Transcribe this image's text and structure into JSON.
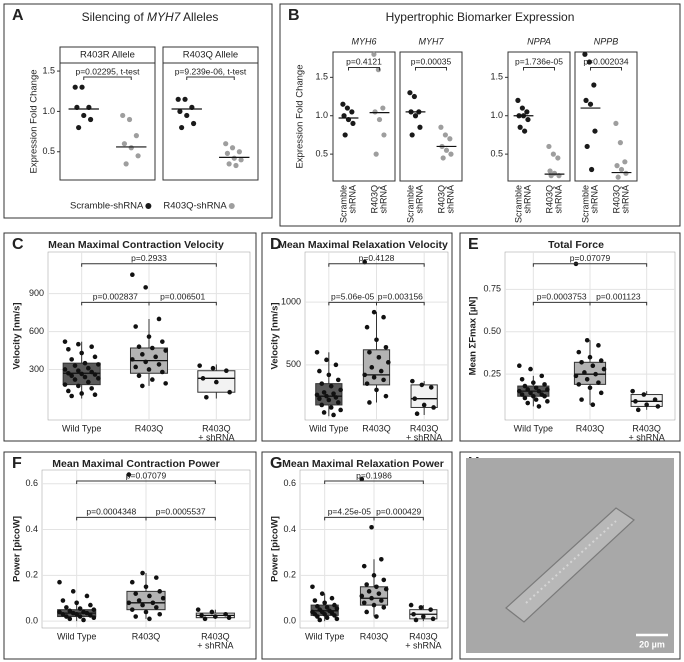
{
  "chart_data": [
    {
      "type": "strip",
      "panel": "A",
      "title": [
        "Silencing of ",
        "MYH7",
        " Alleles"
      ],
      "ylabel": "Expression Fold Change",
      "ylim": [
        0.15,
        1.6
      ],
      "yticks": [
        {
          "value": 0.5,
          "label": "0.5"
        },
        {
          "value": 1,
          "label": "1.0"
        },
        {
          "value": 1.5,
          "label": "1.5"
        }
      ],
      "legend": [
        {
          "name": "Scramble-shRNA",
          "color": "#1a1a1a"
        },
        {
          "name": "R403Q-shRNA",
          "color": "#9e9e9e"
        }
      ],
      "facets": [
        {
          "name": "R403R Allele",
          "p_label": "p=0.02295, t-test",
          "groups": [
            {
              "values": [
                1.3,
                1.3,
                1.05,
                1.05,
                0.95,
                0.9,
                0.8
              ],
              "median": 1.03
            },
            {
              "values": [
                0.95,
                0.9,
                0.7,
                0.6,
                0.55,
                0.45,
                0.35
              ],
              "median": 0.56
            }
          ]
        },
        {
          "name": "R403Q Allele",
          "p_label": "p=9.239e-06, t-test",
          "groups": [
            {
              "values": [
                1.15,
                1.15,
                1.05,
                1.0,
                0.95,
                0.85,
                0.8
              ],
              "median": 1.03
            },
            {
              "values": [
                0.6,
                0.55,
                0.5,
                0.48,
                0.42,
                0.4,
                0.35,
                0.33
              ],
              "median": 0.43
            }
          ]
        }
      ]
    },
    {
      "type": "strip",
      "panel": "B",
      "title": [
        "Hypertrophic Biomarker Expression"
      ],
      "ylabel": "Expression Fold Change",
      "ylim": [
        0.15,
        1.83
      ],
      "yticks": [
        {
          "value": 0.5,
          "label": "0.5"
        },
        {
          "value": 1,
          "label": "1.0"
        },
        {
          "value": 1.5,
          "label": "1.5"
        }
      ],
      "categories": [
        [
          "Scramble",
          "shRNA"
        ],
        [
          "R403Q",
          "shRNA"
        ]
      ],
      "legend": [
        {
          "color": "#1a1a1a"
        },
        {
          "color": "#9e9e9e"
        }
      ],
      "facets": [
        {
          "name": "MYH6",
          "p_label": "p=0.4121",
          "groups": [
            {
              "values": [
                1.15,
                1.1,
                1.05,
                1.0,
                0.95,
                0.9,
                0.75
              ],
              "median": 0.97
            },
            {
              "values": [
                1.8,
                1.6,
                1.1,
                1.05,
                0.95,
                0.75,
                0.5
              ],
              "median": 1.04
            }
          ]
        },
        {
          "name": "MYH7",
          "p_label": "p=0.00035",
          "groups": [
            {
              "values": [
                1.3,
                1.25,
                1.05,
                1.05,
                1.0,
                0.85,
                0.75
              ],
              "median": 1.05
            },
            {
              "values": [
                0.85,
                0.75,
                0.7,
                0.6,
                0.55,
                0.5,
                0.45
              ],
              "median": 0.6
            }
          ]
        },
        {
          "name": "NPPA",
          "p_label": "p=1.736e-05",
          "groups": [
            {
              "values": [
                1.2,
                1.1,
                1.05,
                1.0,
                1.0,
                0.95,
                0.85,
                0.8
              ],
              "median": 1.0
            },
            {
              "values": [
                0.6,
                0.5,
                0.45,
                0.28,
                0.25,
                0.22,
                0.22
              ],
              "median": 0.24
            }
          ]
        },
        {
          "name": "NPPB",
          "p_label": "p=0.002034",
          "groups": [
            {
              "values": [
                1.8,
                1.7,
                1.4,
                1.2,
                1.15,
                0.8,
                0.6,
                0.3
              ],
              "median": 1.1
            },
            {
              "values": [
                0.9,
                0.65,
                0.4,
                0.35,
                0.3,
                0.25,
                0.2
              ],
              "median": 0.26
            }
          ]
        }
      ]
    },
    {
      "type": "box",
      "panel": "C",
      "title": "Mean Maximal Contraction Velocity",
      "ylabel": "Velocity [nm/s]",
      "ylim": [
        -100,
        1230
      ],
      "yticks": [
        300,
        600,
        900
      ],
      "grid": true,
      "categories": [
        [
          "Wild Type"
        ],
        [
          "R403Q"
        ],
        [
          "R403Q",
          "+ shRNA"
        ]
      ],
      "groups": [
        {
          "fill": "#595959",
          "min": 70,
          "q1": 180,
          "median": 270,
          "q3": 350,
          "max": 520,
          "points": [
            520,
            500,
            480,
            460,
            430,
            400,
            380,
            350,
            340,
            330,
            310,
            300,
            290,
            280,
            270,
            265,
            260,
            250,
            240,
            230,
            220,
            200,
            180,
            170,
            150,
            130,
            110,
            100,
            90
          ]
        },
        {
          "fill": "#b3b3b3",
          "min": 170,
          "q1": 270,
          "median": 370,
          "q3": 470,
          "max": 700,
          "points": [
            1050,
            950,
            700,
            640,
            560,
            520,
            480,
            470,
            450,
            420,
            400,
            380,
            360,
            340,
            320,
            300,
            280,
            250,
            220,
            190,
            170
          ]
        },
        {
          "fill": "#f2f2f2",
          "min": 70,
          "q1": 120,
          "median": 230,
          "q3": 290,
          "max": 340,
          "points": [
            330,
            310,
            290,
            230,
            200,
            120,
            80
          ]
        }
      ],
      "comparisons": [
        {
          "pair": [
            0,
            1
          ],
          "label": "p=0.002837"
        },
        {
          "pair": [
            1,
            2
          ],
          "label": "p=0.006501"
        },
        {
          "pair": [
            0,
            2
          ],
          "label": "p=0.2933"
        }
      ]
    },
    {
      "type": "box",
      "panel": "D",
      "title": "Mean Maximal Relaxation Velocity",
      "ylabel": "Velocity [nm/s]",
      "ylim": [
        60,
        1400
      ],
      "yticks": [
        500,
        1000
      ],
      "grid": true,
      "categories": [
        [
          "Wild Type"
        ],
        [
          "R403Q"
        ],
        [
          "R403Q",
          "+ shRNA"
        ]
      ],
      "groups": [
        {
          "fill": "#595959",
          "min": 90,
          "q1": 180,
          "median": 250,
          "q3": 350,
          "max": 600,
          "points": [
            600,
            540,
            500,
            450,
            420,
            380,
            350,
            330,
            300,
            280,
            270,
            260,
            250,
            240,
            230,
            220,
            200,
            180,
            160,
            140,
            120,
            100
          ]
        },
        {
          "fill": "#b3b3b3",
          "min": 200,
          "q1": 340,
          "median": 420,
          "q3": 620,
          "max": 920,
          "points": [
            1320,
            920,
            880,
            800,
            700,
            640,
            600,
            560,
            520,
            480,
            450,
            420,
            400,
            380,
            350,
            300,
            250,
            200
          ]
        },
        {
          "fill": "#f2f2f2",
          "min": 100,
          "q1": 160,
          "median": 230,
          "q3": 340,
          "max": 370,
          "points": [
            370,
            340,
            320,
            230,
            180,
            160,
            110
          ]
        }
      ],
      "comparisons": [
        {
          "pair": [
            0,
            1
          ],
          "label": "p=5.06e-05"
        },
        {
          "pair": [
            1,
            2
          ],
          "label": "p=0.003156"
        },
        {
          "pair": [
            0,
            2
          ],
          "label": "p=0.4128"
        }
      ]
    },
    {
      "type": "box",
      "panel": "E",
      "title": "Total Force",
      "ylabel": "Mean ΣFmax [µN]",
      "ylim": [
        -0.02,
        0.97
      ],
      "yticks": [
        {
          "value": 0.25,
          "label": "0.25"
        },
        {
          "value": 0.5,
          "label": "0.50"
        },
        {
          "value": 0.75,
          "label": "0.75"
        }
      ],
      "grid": true,
      "categories": [
        [
          "Wild Type"
        ],
        [
          "R403Q"
        ],
        [
          "R403Q",
          "+ shRNA"
        ]
      ],
      "groups": [
        {
          "fill": "#595959",
          "min": 0.06,
          "q1": 0.12,
          "median": 0.15,
          "q3": 0.18,
          "max": 0.24,
          "points": [
            0.3,
            0.28,
            0.24,
            0.22,
            0.2,
            0.19,
            0.18,
            0.17,
            0.16,
            0.16,
            0.15,
            0.15,
            0.14,
            0.13,
            0.13,
            0.12,
            0.12,
            0.11,
            0.1,
            0.09,
            0.08,
            0.06
          ]
        },
        {
          "fill": "#b3b3b3",
          "min": 0.07,
          "q1": 0.19,
          "median": 0.25,
          "q3": 0.32,
          "max": 0.45,
          "points": [
            0.9,
            0.45,
            0.42,
            0.38,
            0.35,
            0.33,
            0.32,
            0.3,
            0.28,
            0.26,
            0.25,
            0.24,
            0.22,
            0.2,
            0.19,
            0.17,
            0.14,
            0.1,
            0.07
          ]
        },
        {
          "fill": "#f2f2f2",
          "min": 0.04,
          "q1": 0.06,
          "median": 0.09,
          "q3": 0.13,
          "max": 0.15,
          "points": [
            0.15,
            0.13,
            0.1,
            0.09,
            0.07,
            0.06,
            0.04
          ]
        }
      ],
      "comparisons": [
        {
          "pair": [
            0,
            1
          ],
          "label": "p=0.0003753"
        },
        {
          "pair": [
            1,
            2
          ],
          "label": "p=0.001123"
        },
        {
          "pair": [
            0,
            2
          ],
          "label": "p=0.07079"
        }
      ]
    },
    {
      "type": "box",
      "panel": "F",
      "title": "Mean Maximal Contraction Power",
      "ylabel": "Power [picoW]",
      "ylim": [
        -0.03,
        0.66
      ],
      "yticks": [
        {
          "value": 0,
          "label": "0.0"
        },
        {
          "value": 0.2,
          "label": "0.2"
        },
        {
          "value": 0.4,
          "label": "0.4"
        },
        {
          "value": 0.6,
          "label": "0.6"
        }
      ],
      "grid": true,
      "categories": [
        [
          "Wild Type"
        ],
        [
          "R403Q"
        ],
        [
          "R403Q",
          "+ shRNA"
        ]
      ],
      "groups": [
        {
          "fill": "#595959",
          "min": 0,
          "q1": 0.02,
          "median": 0.035,
          "q3": 0.05,
          "max": 0.09,
          "points": [
            0.17,
            0.13,
            0.11,
            0.09,
            0.08,
            0.07,
            0.06,
            0.055,
            0.05,
            0.045,
            0.04,
            0.04,
            0.035,
            0.035,
            0.03,
            0.03,
            0.025,
            0.02,
            0.02,
            0.015,
            0.01,
            0.005
          ]
        },
        {
          "fill": "#b3b3b3",
          "min": 0.01,
          "q1": 0.05,
          "median": 0.08,
          "q3": 0.13,
          "max": 0.21,
          "points": [
            0.64,
            0.21,
            0.19,
            0.17,
            0.15,
            0.13,
            0.12,
            0.11,
            0.1,
            0.09,
            0.08,
            0.08,
            0.07,
            0.06,
            0.05,
            0.04,
            0.03,
            0.02,
            0.01
          ]
        },
        {
          "fill": "#f2f2f2",
          "min": 0.01,
          "q1": 0.015,
          "median": 0.025,
          "q3": 0.035,
          "max": 0.05,
          "points": [
            0.05,
            0.04,
            0.03,
            0.025,
            0.02,
            0.015,
            0.01
          ]
        }
      ],
      "comparisons": [
        {
          "pair": [
            0,
            1
          ],
          "label": "p=0.0004348"
        },
        {
          "pair": [
            1,
            2
          ],
          "label": "p=0.0005537"
        },
        {
          "pair": [
            0,
            2
          ],
          "label": "p=0.07079"
        }
      ]
    },
    {
      "type": "box",
      "panel": "G",
      "title": "Mean Maximal Relaxation Power",
      "ylabel": "Power [picoW]",
      "ylim": [
        -0.03,
        0.66
      ],
      "yticks": [
        {
          "value": 0,
          "label": "0.0"
        },
        {
          "value": 0.2,
          "label": "0.2"
        },
        {
          "value": 0.4,
          "label": "0.4"
        },
        {
          "value": 0.6,
          "label": "0.6"
        }
      ],
      "grid": true,
      "categories": [
        [
          "Wild Type"
        ],
        [
          "R403Q"
        ],
        [
          "R403Q",
          "+ shRNA"
        ]
      ],
      "groups": [
        {
          "fill": "#595959",
          "min": 0,
          "q1": 0.025,
          "median": 0.045,
          "q3": 0.07,
          "max": 0.12,
          "points": [
            0.15,
            0.12,
            0.1,
            0.09,
            0.08,
            0.07,
            0.065,
            0.06,
            0.055,
            0.05,
            0.045,
            0.04,
            0.04,
            0.035,
            0.03,
            0.03,
            0.025,
            0.02,
            0.015,
            0.01,
            0.005
          ]
        },
        {
          "fill": "#b3b3b3",
          "min": 0.02,
          "q1": 0.07,
          "median": 0.1,
          "q3": 0.15,
          "max": 0.27,
          "points": [
            0.62,
            0.41,
            0.27,
            0.24,
            0.2,
            0.18,
            0.16,
            0.15,
            0.14,
            0.13,
            0.12,
            0.11,
            0.1,
            0.09,
            0.08,
            0.07,
            0.06,
            0.04,
            0.02
          ]
        },
        {
          "fill": "#f2f2f2",
          "min": 0,
          "q1": 0.01,
          "median": 0.03,
          "q3": 0.05,
          "max": 0.07,
          "points": [
            0.07,
            0.06,
            0.05,
            0.03,
            0.02,
            0.01,
            0.005
          ]
        }
      ],
      "comparisons": [
        {
          "pair": [
            0,
            1
          ],
          "label": "p=4.25e-05"
        },
        {
          "pair": [
            1,
            2
          ],
          "label": "p=0.000429"
        },
        {
          "pair": [
            0,
            2
          ],
          "label": "p=0.1986"
        }
      ]
    },
    {
      "type": "image",
      "panel": "H",
      "scale_label": "20 µm"
    }
  ]
}
